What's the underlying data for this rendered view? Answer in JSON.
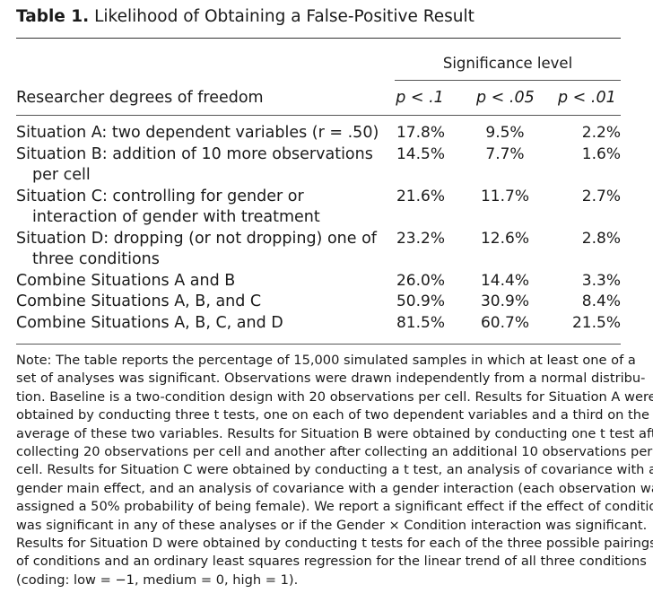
{
  "table": {
    "label": "Table 1.",
    "title": "Likelihood of Obtaining a False-Positive Result",
    "significance_header": "Significance level",
    "row_header": "Researcher degrees of freedom",
    "columns": [
      "p < .1",
      "p < .05",
      "p < .01"
    ],
    "rows": [
      {
        "label": "Situation A: two dependent variables (r = .50)",
        "values": [
          "17.8%",
          "9.5%",
          "2.2%"
        ]
      },
      {
        "label": "Situation B: addition of 10 more observations per cell",
        "values": [
          "14.5%",
          "7.7%",
          "1.6%"
        ]
      },
      {
        "label": "Situation C: controlling for gender or interaction of gender with treatment",
        "values": [
          "21.6%",
          "11.7%",
          "2.7%"
        ]
      },
      {
        "label": "Situation D: dropping (or not dropping) one of three conditions",
        "values": [
          "23.2%",
          "12.6%",
          "2.8%"
        ]
      },
      {
        "label": "Combine Situations A and B",
        "values": [
          "26.0%",
          "14.4%",
          "3.3%"
        ]
      },
      {
        "label": "Combine Situations A, B, and C",
        "values": [
          "50.9%",
          "30.9%",
          "8.4%"
        ]
      },
      {
        "label": "Combine Situations A, B, C, and D",
        "values": [
          "81.5%",
          "60.7%",
          "21.5%"
        ]
      }
    ],
    "note_lines": [
      "Note: The table reports the percentage of 15,000 simulated samples in which at least one of a",
      "set of analyses was significant. Observations were drawn independently from a normal distribu-",
      "tion. Baseline is a two-condition design with 20 observations per cell. Results for Situation A were",
      "obtained by conducting three t tests, one on each of two dependent variables and a third on the",
      "average of these two variables. Results for Situation B were obtained by conducting one t test after",
      "collecting 20 observations per cell and another after collecting an additional 10 observations per",
      "cell. Results for Situation C were obtained by conducting a t test, an analysis of covariance with a",
      "gender main effect, and an analysis of covariance with a gender interaction (each observation was",
      "assigned a 50% probability of being female). We report a significant effect if the effect of condition",
      "was significant in any of these analyses or if the Gender × Condition interaction was significant.",
      "Results for Situation D were obtained by conducting t tests for each of the three possible pairings",
      "of conditions and an ordinary least squares regression for the linear trend of all three conditions",
      "(coding: low = −1, medium = 0, high = 1)."
    ]
  }
}
